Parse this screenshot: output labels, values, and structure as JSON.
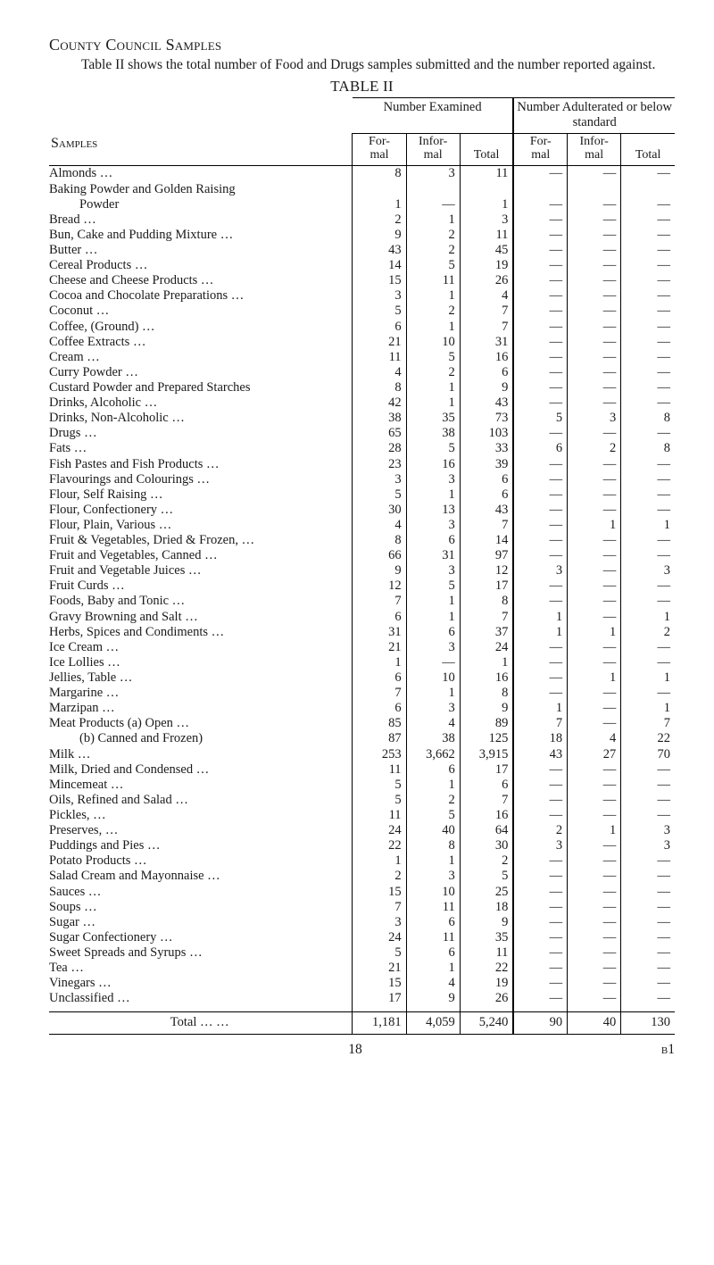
{
  "heading": "County Council Samples",
  "intro": "Table II shows the total number of Food and Drugs samples sub­mitted and the number reported against.",
  "table_title": "TABLE II",
  "col_headers": {
    "samples": "Samples",
    "group1": "Number Examined",
    "group2": "Number Adulterated or below standard",
    "formal": "For-\nmal",
    "informal": "Infor-\nmal",
    "total": "Total"
  },
  "rows": [
    {
      "name": "Almonds …",
      "ef": "8",
      "ei": "3",
      "et": "11",
      "af": "—",
      "ai": "—",
      "at": "—",
      "indent": 0
    },
    {
      "name": "Baking Powder and Golden Raising",
      "ef": "",
      "ei": "",
      "et": "",
      "af": "",
      "ai": "",
      "at": "",
      "indent": 0
    },
    {
      "name": "Powder",
      "ef": "1",
      "ei": "—",
      "et": "1",
      "af": "—",
      "ai": "—",
      "at": "—",
      "indent": 1
    },
    {
      "name": "Bread …",
      "ef": "2",
      "ei": "1",
      "et": "3",
      "af": "—",
      "ai": "—",
      "at": "—",
      "indent": 0
    },
    {
      "name": "Bun, Cake and Pudding Mixture …",
      "ef": "9",
      "ei": "2",
      "et": "11",
      "af": "—",
      "ai": "—",
      "at": "—",
      "indent": 0
    },
    {
      "name": "Butter …",
      "ef": "43",
      "ei": "2",
      "et": "45",
      "af": "—",
      "ai": "—",
      "at": "—",
      "indent": 0
    },
    {
      "name": "Cereal Products …",
      "ef": "14",
      "ei": "5",
      "et": "19",
      "af": "—",
      "ai": "—",
      "at": "—",
      "indent": 0
    },
    {
      "name": "Cheese and Cheese Products …",
      "ef": "15",
      "ei": "11",
      "et": "26",
      "af": "—",
      "ai": "—",
      "at": "—",
      "indent": 0
    },
    {
      "name": "Cocoa and Chocolate Preparations …",
      "ef": "3",
      "ei": "1",
      "et": "4",
      "af": "—",
      "ai": "—",
      "at": "—",
      "indent": 0
    },
    {
      "name": "Coconut …",
      "ef": "5",
      "ei": "2",
      "et": "7",
      "af": "—",
      "ai": "—",
      "at": "—",
      "indent": 0
    },
    {
      "name": "Coffee, (Ground) …",
      "ef": "6",
      "ei": "1",
      "et": "7",
      "af": "—",
      "ai": "—",
      "at": "—",
      "indent": 0
    },
    {
      "name": "Coffee Extracts …",
      "ef": "21",
      "ei": "10",
      "et": "31",
      "af": "—",
      "ai": "—",
      "at": "—",
      "indent": 0
    },
    {
      "name": "Cream …",
      "ef": "11",
      "ei": "5",
      "et": "16",
      "af": "—",
      "ai": "—",
      "at": "—",
      "indent": 0
    },
    {
      "name": "Curry Powder …",
      "ef": "4",
      "ei": "2",
      "et": "6",
      "af": "—",
      "ai": "—",
      "at": "—",
      "indent": 0
    },
    {
      "name": "Custard Powder and Prepared Starches",
      "ef": "8",
      "ei": "1",
      "et": "9",
      "af": "—",
      "ai": "—",
      "at": "—",
      "indent": 0
    },
    {
      "name": "Drinks, Alcoholic …",
      "ef": "42",
      "ei": "1",
      "et": "43",
      "af": "—",
      "ai": "—",
      "at": "—",
      "indent": 0
    },
    {
      "name": "Drinks, Non-Alcoholic …",
      "ef": "38",
      "ei": "35",
      "et": "73",
      "af": "5",
      "ai": "3",
      "at": "8",
      "indent": 0
    },
    {
      "name": "Drugs …",
      "ef": "65",
      "ei": "38",
      "et": "103",
      "af": "—",
      "ai": "—",
      "at": "—",
      "indent": 0
    },
    {
      "name": "Fats …",
      "ef": "28",
      "ei": "5",
      "et": "33",
      "af": "6",
      "ai": "2",
      "at": "8",
      "indent": 0
    },
    {
      "name": "Fish Pastes and Fish Products …",
      "ef": "23",
      "ei": "16",
      "et": "39",
      "af": "—",
      "ai": "—",
      "at": "—",
      "indent": 0
    },
    {
      "name": "Flavourings and Colourings …",
      "ef": "3",
      "ei": "3",
      "et": "6",
      "af": "—",
      "ai": "—",
      "at": "—",
      "indent": 0
    },
    {
      "name": "Flour, Self Raising …",
      "ef": "5",
      "ei": "1",
      "et": "6",
      "af": "—",
      "ai": "—",
      "at": "—",
      "indent": 0
    },
    {
      "name": "Flour, Confectionery …",
      "ef": "30",
      "ei": "13",
      "et": "43",
      "af": "—",
      "ai": "—",
      "at": "—",
      "indent": 0
    },
    {
      "name": "Flour, Plain, Various …",
      "ef": "4",
      "ei": "3",
      "et": "7",
      "af": "—",
      "ai": "1",
      "at": "1",
      "indent": 0
    },
    {
      "name": "Fruit & Vegetables, Dried & Frozen, …",
      "ef": "8",
      "ei": "6",
      "et": "14",
      "af": "—",
      "ai": "—",
      "at": "—",
      "indent": 0
    },
    {
      "name": "Fruit and Vegetables, Canned …",
      "ef": "66",
      "ei": "31",
      "et": "97",
      "af": "—",
      "ai": "—",
      "at": "—",
      "indent": 0
    },
    {
      "name": "Fruit and Vegetable Juices …",
      "ef": "9",
      "ei": "3",
      "et": "12",
      "af": "3",
      "ai": "—",
      "at": "3",
      "indent": 0
    },
    {
      "name": "Fruit Curds …",
      "ef": "12",
      "ei": "5",
      "et": "17",
      "af": "—",
      "ai": "—",
      "at": "—",
      "indent": 0
    },
    {
      "name": "Foods, Baby and Tonic …",
      "ef": "7",
      "ei": "1",
      "et": "8",
      "af": "—",
      "ai": "—",
      "at": "—",
      "indent": 0
    },
    {
      "name": "Gravy Browning and Salt …",
      "ef": "6",
      "ei": "1",
      "et": "7",
      "af": "1",
      "ai": "—",
      "at": "1",
      "indent": 0
    },
    {
      "name": "Herbs, Spices and Condiments …",
      "ef": "31",
      "ei": "6",
      "et": "37",
      "af": "1",
      "ai": "1",
      "at": "2",
      "indent": 0
    },
    {
      "name": "Ice Cream …",
      "ef": "21",
      "ei": "3",
      "et": "24",
      "af": "—",
      "ai": "—",
      "at": "—",
      "indent": 0
    },
    {
      "name": "Ice Lollies …",
      "ef": "1",
      "ei": "—",
      "et": "1",
      "af": "—",
      "ai": "—",
      "at": "—",
      "indent": 0
    },
    {
      "name": "Jellies, Table …",
      "ef": "6",
      "ei": "10",
      "et": "16",
      "af": "—",
      "ai": "1",
      "at": "1",
      "indent": 0
    },
    {
      "name": "Margarine …",
      "ef": "7",
      "ei": "1",
      "et": "8",
      "af": "—",
      "ai": "—",
      "at": "—",
      "indent": 0
    },
    {
      "name": "Marzipan …",
      "ef": "6",
      "ei": "3",
      "et": "9",
      "af": "1",
      "ai": "—",
      "at": "1",
      "indent": 0
    },
    {
      "name": "Meat Products (a) Open …",
      "ef": "85",
      "ei": "4",
      "et": "89",
      "af": "7",
      "ai": "—",
      "at": "7",
      "indent": 0
    },
    {
      "name": "(b) Canned and Frozen)",
      "ef": "87",
      "ei": "38",
      "et": "125",
      "af": "18",
      "ai": "4",
      "at": "22",
      "indent": 1
    },
    {
      "name": "Milk …",
      "ef": "253",
      "ei": "3,662",
      "et": "3,915",
      "af": "43",
      "ai": "27",
      "at": "70",
      "indent": 0
    },
    {
      "name": "Milk, Dried and Condensed …",
      "ef": "11",
      "ei": "6",
      "et": "17",
      "af": "—",
      "ai": "—",
      "at": "—",
      "indent": 0
    },
    {
      "name": "Mincemeat …",
      "ef": "5",
      "ei": "1",
      "et": "6",
      "af": "—",
      "ai": "—",
      "at": "—",
      "indent": 0
    },
    {
      "name": "Oils, Refined and Salad …",
      "ef": "5",
      "ei": "2",
      "et": "7",
      "af": "—",
      "ai": "—",
      "at": "—",
      "indent": 0
    },
    {
      "name": "Pickles, …",
      "ef": "11",
      "ei": "5",
      "et": "16",
      "af": "—",
      "ai": "—",
      "at": "—",
      "indent": 0
    },
    {
      "name": "Preserves, …",
      "ef": "24",
      "ei": "40",
      "et": "64",
      "af": "2",
      "ai": "1",
      "at": "3",
      "indent": 0
    },
    {
      "name": "Puddings and Pies …",
      "ef": "22",
      "ei": "8",
      "et": "30",
      "af": "3",
      "ai": "—",
      "at": "3",
      "indent": 0
    },
    {
      "name": "Potato Products …",
      "ef": "1",
      "ei": "1",
      "et": "2",
      "af": "—",
      "ai": "—",
      "at": "—",
      "indent": 0
    },
    {
      "name": "Salad Cream and Mayonnaise …",
      "ef": "2",
      "ei": "3",
      "et": "5",
      "af": "—",
      "ai": "—",
      "at": "—",
      "indent": 0
    },
    {
      "name": "Sauces …",
      "ef": "15",
      "ei": "10",
      "et": "25",
      "af": "—",
      "ai": "—",
      "at": "—",
      "indent": 0
    },
    {
      "name": "Soups …",
      "ef": "7",
      "ei": "11",
      "et": "18",
      "af": "—",
      "ai": "—",
      "at": "—",
      "indent": 0
    },
    {
      "name": "Sugar …",
      "ef": "3",
      "ei": "6",
      "et": "9",
      "af": "—",
      "ai": "—",
      "at": "—",
      "indent": 0
    },
    {
      "name": "Sugar Confectionery …",
      "ef": "24",
      "ei": "11",
      "et": "35",
      "af": "—",
      "ai": "—",
      "at": "—",
      "indent": 0
    },
    {
      "name": "Sweet Spreads and Syrups …",
      "ef": "5",
      "ei": "6",
      "et": "11",
      "af": "—",
      "ai": "—",
      "at": "—",
      "indent": 0
    },
    {
      "name": "Tea …",
      "ef": "21",
      "ei": "1",
      "et": "22",
      "af": "—",
      "ai": "—",
      "at": "—",
      "indent": 0
    },
    {
      "name": "Vinegars …",
      "ef": "15",
      "ei": "4",
      "et": "19",
      "af": "—",
      "ai": "—",
      "at": "—",
      "indent": 0
    },
    {
      "name": "Unclassified …",
      "ef": "17",
      "ei": "9",
      "et": "26",
      "af": "—",
      "ai": "—",
      "at": "—",
      "indent": 0
    }
  ],
  "total_row": {
    "name": "Total … …",
    "ef": "1,181",
    "ei": "4,059",
    "et": "5,240",
    "af": "90",
    "ai": "40",
    "at": "130"
  },
  "footer": {
    "page": "18",
    "sig": "b1"
  }
}
